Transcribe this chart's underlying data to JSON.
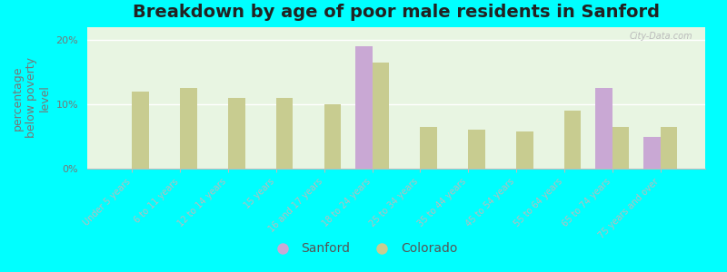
{
  "title": "Breakdown by age of poor male residents in Sanford",
  "ylabel": "percentage\nbelow poverty\nlevel",
  "categories": [
    "Under 5 years",
    "6 to 11 years",
    "12 to 14 years",
    "15 years",
    "16 and 17 years",
    "18 to 24 years",
    "25 to 34 years",
    "35 to 44 years",
    "45 to 54 years",
    "55 to 64 years",
    "65 to 74 years",
    "75 years and over"
  ],
  "sanford_values": [
    0,
    0,
    0,
    0,
    0,
    19.0,
    0,
    0,
    0,
    0,
    12.5,
    5.0
  ],
  "colorado_values": [
    12.0,
    12.5,
    11.0,
    11.0,
    10.0,
    16.5,
    6.5,
    6.0,
    5.8,
    9.0,
    6.5,
    6.5
  ],
  "sanford_color": "#c9a8d4",
  "colorado_color": "#c8cc90",
  "background_color": "#e8f5e2",
  "outer_bg_color": "#00ffff",
  "ylim": [
    0,
    22
  ],
  "yticks": [
    0,
    10,
    20
  ],
  "ytick_labels": [
    "0%",
    "10%",
    "20%"
  ],
  "bar_width": 0.35,
  "title_fontsize": 14,
  "axis_label_fontsize": 9,
  "tick_fontsize": 8,
  "legend_fontsize": 10,
  "watermark": "City-Data.com"
}
